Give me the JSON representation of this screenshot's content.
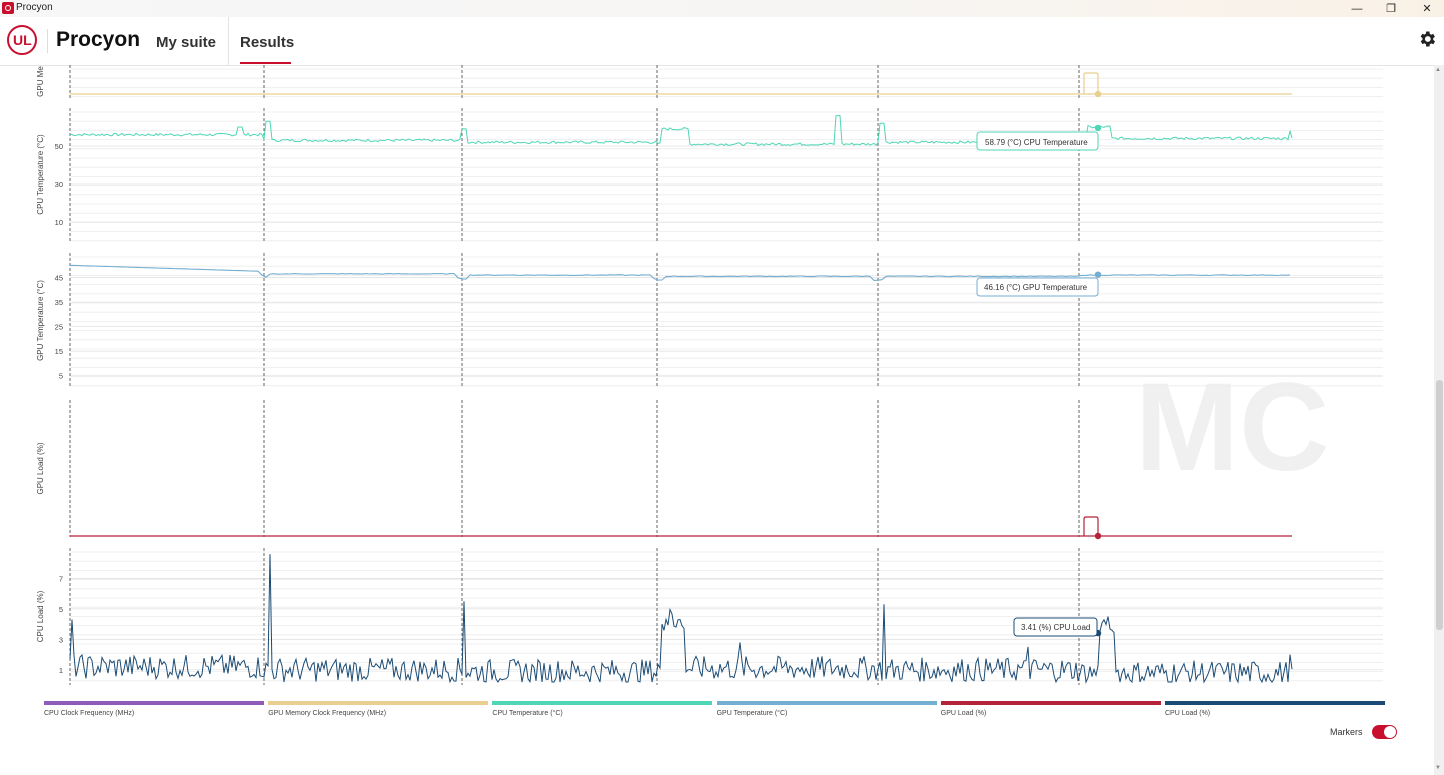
{
  "window": {
    "title": "Procyon",
    "minimize_icon": "minimize-icon",
    "restore_icon": "restore-icon",
    "close_icon": "close-icon"
  },
  "header": {
    "logo_text": "UL",
    "brand": "Procyon",
    "nav": [
      "My suite",
      "Results"
    ],
    "active_nav": "Results",
    "settings_icon": "gear-icon"
  },
  "colors": {
    "brand_red": "#c8102e",
    "cpu_clock": "#8e5bb8",
    "gpu_mem_clock": "#e8cf8f",
    "cpu_temp": "#4fd6b4",
    "gpu_temp": "#74aed0",
    "gpu_load": "#b5233b",
    "cpu_load": "#1b4b74"
  },
  "chart_data": [
    {
      "type": "line",
      "ylabel": "GPU Me",
      "series": [
        {
          "name": "GPU Memory Clock Frequency (MHz)",
          "values": []
        }
      ],
      "grid": true
    },
    {
      "type": "line",
      "ylabel": "CPU Temperature (°C)",
      "yticks": [
        10,
        30,
        50
      ],
      "ylim": [
        0,
        70
      ],
      "series": [
        {
          "name": "CPU Temperature (°C)",
          "segments_mean": [
            56,
            53,
            52,
            51,
            52,
            54
          ]
        }
      ],
      "tooltip": "58.79 (°C) CPU Temperature",
      "grid": true
    },
    {
      "type": "line",
      "ylabel": "GPU Temperature (°C)",
      "yticks": [
        5,
        15,
        25,
        35,
        45
      ],
      "ylim": [
        0,
        55
      ],
      "series": [
        {
          "name": "GPU Temperature (°C)",
          "segments_mean": [
            48.5,
            46.5,
            46,
            45.5,
            45.5,
            46
          ]
        }
      ],
      "tooltip": "46.16 (°C) GPU Temperature",
      "grid": true
    },
    {
      "type": "line",
      "ylabel": "GPU Load (%)",
      "series": [
        {
          "name": "GPU Load (%)",
          "values": [
            0
          ]
        }
      ],
      "grid": false
    },
    {
      "type": "line",
      "ylabel": "CPU Load (%)",
      "yticks": [
        1,
        3,
        5,
        7
      ],
      "ylim": [
        0,
        9
      ],
      "series": [
        {
          "name": "CPU Load (%)",
          "segments_mean": [
            1.2,
            1.0,
            0.9,
            1.1,
            1.0,
            0.8
          ]
        }
      ],
      "tooltip": "3.41 (%) CPU Load",
      "grid": true
    }
  ],
  "legend": [
    {
      "label": "CPU Clock Frequency (MHz)",
      "color": "#8e5bb8"
    },
    {
      "label": "GPU Memory Clock Frequency (MHz)",
      "color": "#e8cf8f"
    },
    {
      "label": "CPU Temperature (°C)",
      "color": "#4fd6b4"
    },
    {
      "label": "GPU Temperature (°C)",
      "color": "#74aed0"
    },
    {
      "label": "GPU Load (%)",
      "color": "#b5233b"
    },
    {
      "label": "CPU Load (%)",
      "color": "#1b4b74"
    }
  ],
  "markers": {
    "label": "Markers",
    "enabled": true
  },
  "watermark": "MC"
}
